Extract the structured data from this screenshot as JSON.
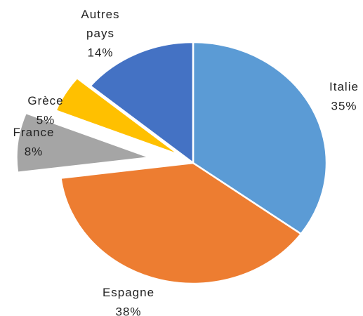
{
  "chart_data": {
    "type": "pie",
    "categories": [
      "Italie",
      "Espagne",
      "France",
      "Grèce",
      "Autres pays"
    ],
    "values": [
      35,
      38,
      8,
      5,
      14
    ],
    "value_labels": [
      "35%",
      "38%",
      "8%",
      "5%",
      "14%"
    ],
    "colors": [
      "#5b9bd5",
      "#ed7d31",
      "#a5a5a5",
      "#ffc000",
      "#4472c4"
    ]
  }
}
